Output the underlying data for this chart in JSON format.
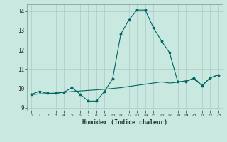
{
  "title": "",
  "xlabel": "Humidex (Indice chaleur)",
  "ylabel": "",
  "background_color": "#c8e8e0",
  "grid_color": "#b0c8c8",
  "line_color": "#006666",
  "xlim": [
    -0.5,
    23.5
  ],
  "ylim": [
    8.85,
    14.35
  ],
  "yticks": [
    9,
    10,
    11,
    12,
    13,
    14
  ],
  "xticks": [
    0,
    1,
    2,
    3,
    4,
    5,
    6,
    7,
    8,
    9,
    10,
    11,
    12,
    13,
    14,
    15,
    16,
    17,
    18,
    19,
    20,
    21,
    22,
    23
  ],
  "line1_x": [
    0,
    1,
    2,
    3,
    4,
    5,
    6,
    7,
    8,
    9,
    10,
    11,
    12,
    13,
    14,
    15,
    16,
    17,
    18,
    19,
    20,
    21,
    22,
    23
  ],
  "line1_y": [
    9.7,
    9.85,
    9.75,
    9.75,
    9.8,
    10.05,
    9.7,
    9.35,
    9.35,
    9.85,
    10.5,
    12.8,
    13.55,
    14.05,
    14.05,
    13.15,
    12.45,
    11.85,
    10.35,
    10.35,
    10.55,
    10.15,
    10.55,
    10.7
  ],
  "line2_x": [
    0,
    1,
    2,
    3,
    4,
    5,
    6,
    7,
    8,
    9,
    10,
    11,
    12,
    13,
    14,
    15,
    16,
    17,
    18,
    19,
    20,
    21,
    22,
    23
  ],
  "line2_y": [
    9.68,
    9.72,
    9.74,
    9.76,
    9.8,
    9.84,
    9.87,
    9.9,
    9.93,
    9.96,
    10.0,
    10.04,
    10.1,
    10.16,
    10.22,
    10.28,
    10.34,
    10.28,
    10.32,
    10.4,
    10.48,
    10.15,
    10.55,
    10.7
  ]
}
